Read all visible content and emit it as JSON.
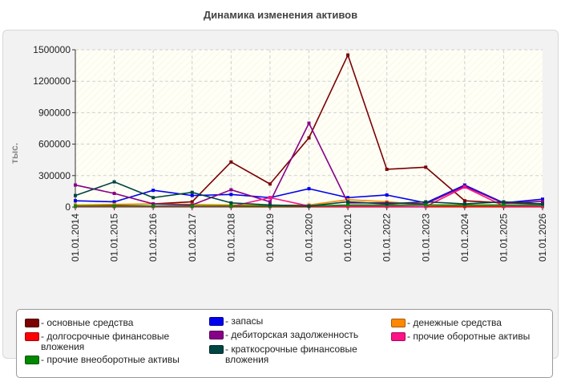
{
  "title": "Динамика изменения активов",
  "chart_data": {
    "type": "line",
    "title": "Динамика изменения активов",
    "ylabel": "тыс.",
    "xlabel": "",
    "ylim": [
      0,
      1500000
    ],
    "yticks": [
      "0",
      "300000",
      "600000",
      "900000",
      "1200000",
      "1500000"
    ],
    "categories": [
      "01.01.2014",
      "01.01.2015",
      "01.01.2016",
      "01.01.2017",
      "01.01.2018",
      "01.01.2019",
      "01.01.2020",
      "01.01.2021",
      "01.01.2022",
      "01.01.2023",
      "01.01.2024",
      "01.01.2025",
      "01.01.2026"
    ],
    "grid": true,
    "legend_position": "bottom",
    "series": [
      {
        "name": "- основные средства",
        "color": "#7b0000",
        "values": [
          10000,
          20000,
          30000,
          50000,
          430000,
          220000,
          660000,
          1450000,
          360000,
          380000,
          60000,
          40000,
          30000
        ]
      },
      {
        "name": "- запасы",
        "color": "#0000ee",
        "values": [
          60000,
          50000,
          160000,
          110000,
          120000,
          90000,
          175000,
          90000,
          115000,
          40000,
          210000,
          40000,
          75000
        ]
      },
      {
        "name": "- денежные средства",
        "color": "#ff8800",
        "values": [
          20000,
          25000,
          30000,
          25000,
          20000,
          15000,
          20000,
          70000,
          50000,
          20000,
          15000,
          10000,
          10000
        ]
      },
      {
        "name": "- долгосрочные финансовые вложения",
        "color": "#ff0000",
        "values": [
          5000,
          5000,
          5000,
          5000,
          5000,
          5000,
          5000,
          5000,
          5000,
          5000,
          5000,
          5000,
          5000
        ]
      },
      {
        "name": "- дебиторская задолженность",
        "color": "#880088",
        "values": [
          210000,
          130000,
          30000,
          20000,
          165000,
          50000,
          800000,
          40000,
          40000,
          30000,
          200000,
          35000,
          55000
        ]
      },
      {
        "name": "- прочие оборотные активы",
        "color": "#ff1188",
        "values": [
          5000,
          5000,
          5000,
          5000,
          5000,
          90000,
          10000,
          10000,
          10000,
          5000,
          190000,
          10000,
          10000
        ]
      },
      {
        "name": "- прочие внеоборотные активы",
        "color": "#008800",
        "values": [
          10000,
          10000,
          10000,
          10000,
          10000,
          10000,
          10000,
          20000,
          20000,
          20000,
          20000,
          20000,
          20000
        ]
      },
      {
        "name": "- краткосрочные финансовые вложения",
        "color": "#004444",
        "values": [
          110000,
          240000,
          90000,
          140000,
          40000,
          20000,
          10000,
          50000,
          30000,
          50000,
          30000,
          50000,
          30000
        ]
      }
    ]
  }
}
